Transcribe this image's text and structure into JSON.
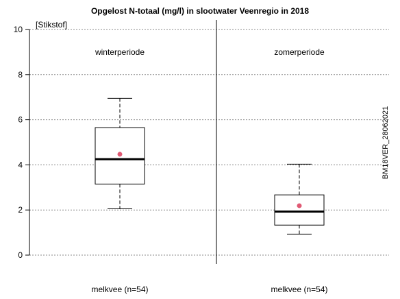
{
  "chart_data": {
    "type": "boxplot",
    "title": "Opgelost N-totaal (mg/l) in slootwater Veenregio in 2018",
    "unit_label": "[Stikstof]",
    "side_label": "BM18VER_28062021",
    "ylim": [
      0,
      10
    ],
    "yticks": [
      0,
      2,
      4,
      6,
      8,
      10
    ],
    "grid": true,
    "panels": [
      {
        "label": "winterperiode",
        "category": "melkvee (n=54)",
        "min": 2.05,
        "q1": 3.15,
        "median": 4.25,
        "q3": 5.65,
        "max": 6.95,
        "mean": 4.47
      },
      {
        "label": "zomerperiode",
        "category": "melkvee (n=54)",
        "min": 0.93,
        "q1": 1.33,
        "median": 1.93,
        "q3": 2.67,
        "max": 4.03,
        "mean": 2.19
      }
    ],
    "colors": {
      "mean": "#e05a74",
      "box": "#000000",
      "grid": "#888888"
    }
  }
}
